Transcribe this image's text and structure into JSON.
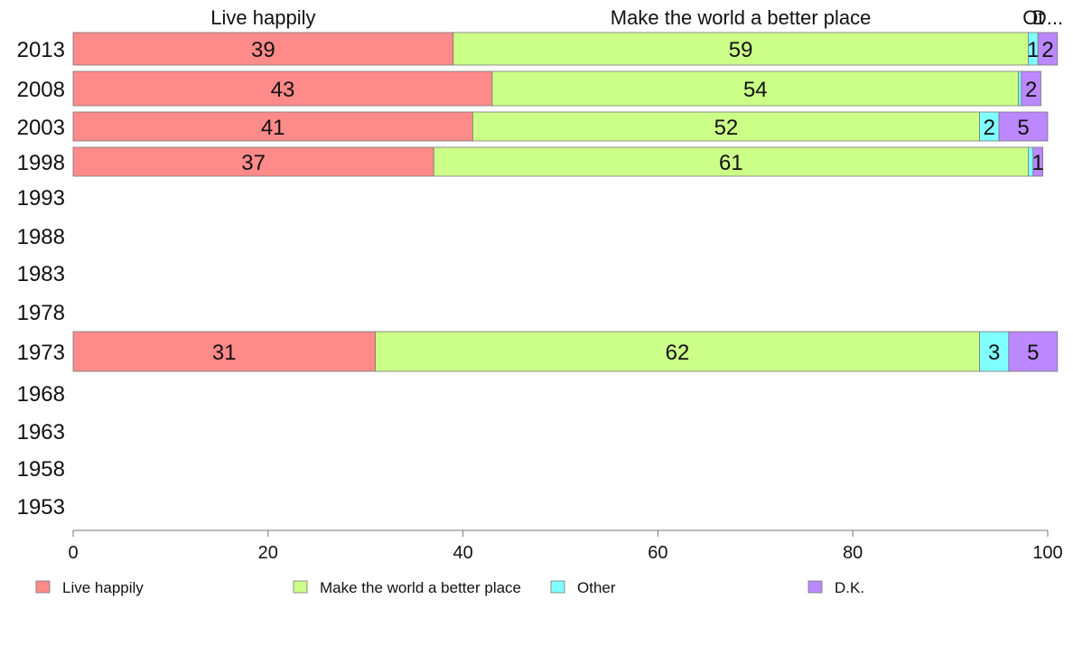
{
  "chart_data": {
    "type": "bar",
    "orientation": "horizontal",
    "stacked": true,
    "categories": [
      "2013",
      "2008",
      "2003",
      "1998",
      "1993",
      "1988",
      "1983",
      "1978",
      "1973",
      "1968",
      "1963",
      "1958",
      "1953"
    ],
    "series": [
      {
        "name": "Live happily",
        "color": "#FF8A8A",
        "values": [
          39,
          43,
          41,
          37,
          null,
          null,
          null,
          null,
          31,
          null,
          null,
          null,
          null
        ]
      },
      {
        "name": "Make the world a better place",
        "color": "#CCFF88",
        "values": [
          59,
          54,
          52,
          61,
          null,
          null,
          null,
          null,
          62,
          null,
          null,
          null,
          null
        ]
      },
      {
        "name": "Other",
        "color": "#7FFFFF",
        "values": [
          1,
          0.3,
          2,
          0.5,
          null,
          null,
          null,
          null,
          3,
          null,
          null,
          null,
          null
        ]
      },
      {
        "name": "D.K.",
        "color": "#BB88FF",
        "values": [
          2,
          2,
          5,
          1,
          null,
          null,
          null,
          null,
          5,
          null,
          null,
          null,
          null
        ]
      }
    ],
    "segment_labels": [
      [
        "39",
        "59",
        "1",
        "2"
      ],
      [
        "43",
        "54",
        "",
        "2"
      ],
      [
        "41",
        "52",
        "2",
        "5"
      ],
      [
        "37",
        "61",
        "",
        "1"
      ],
      null,
      null,
      null,
      null,
      [
        "31",
        "62",
        "3",
        "5"
      ],
      null,
      null,
      null,
      null
    ],
    "top_labels": [
      "Live happily",
      "Make the world a better place",
      "Ot",
      "D..."
    ],
    "xlim": [
      0,
      100
    ],
    "xticks": [
      "0",
      "20",
      "40",
      "60",
      "80",
      "100"
    ],
    "grid": false,
    "legend": {
      "placement": "bottom",
      "entries": [
        "Live happily",
        "Make the world a better place",
        "Other",
        "D.K."
      ]
    }
  }
}
